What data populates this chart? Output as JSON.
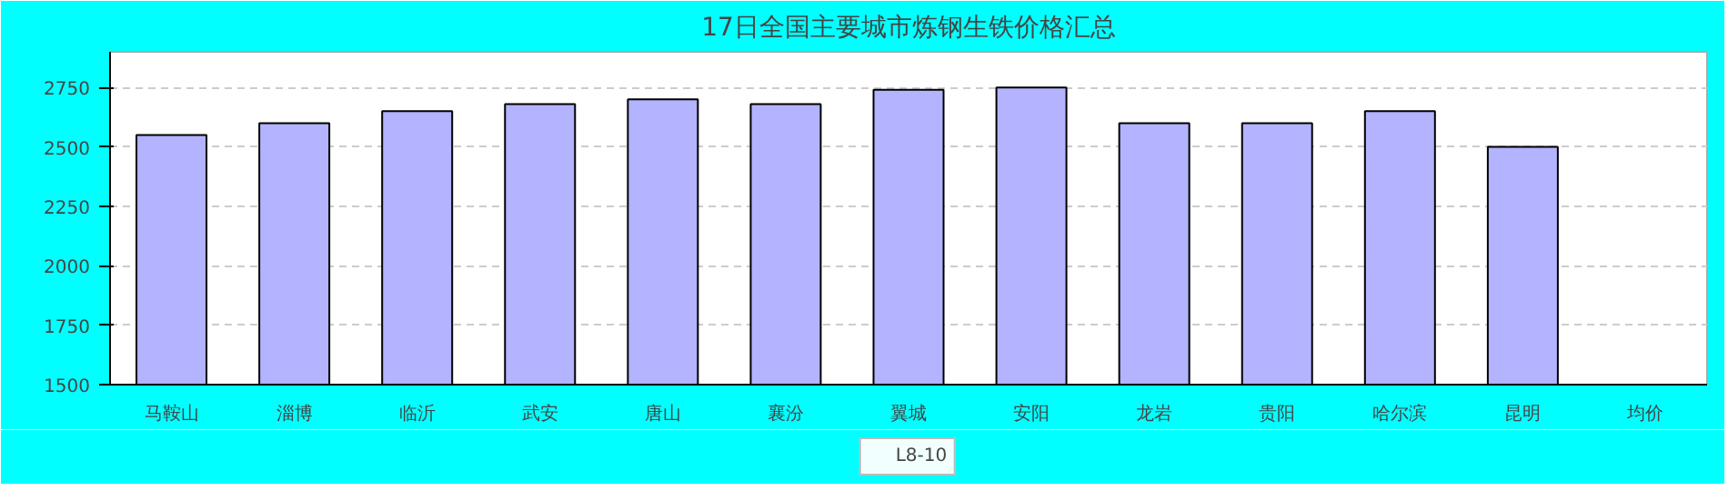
{
  "chart_data": {
    "type": "bar",
    "title": "17日全国主要城市炼钢生铁价格汇总",
    "categories": [
      "马鞍山",
      "淄博",
      "临沂",
      "武安",
      "唐山",
      "襄汾",
      "翼城",
      "安阳",
      "龙岩",
      "贵阳",
      "哈尔滨",
      "昆明",
      "均价"
    ],
    "series": [
      {
        "name": "L8-10",
        "color": "#b3b3ff",
        "values": [
          2550,
          2600,
          2650,
          2680,
          2700,
          2680,
          2740,
          2750,
          2600,
          2600,
          2650,
          2500,
          null
        ]
      }
    ],
    "ylim": [
      1500,
      2900
    ],
    "yticks": [
      1500,
      1750,
      2000,
      2250,
      2500,
      2750
    ],
    "grid": "y",
    "legend": "bottom"
  }
}
